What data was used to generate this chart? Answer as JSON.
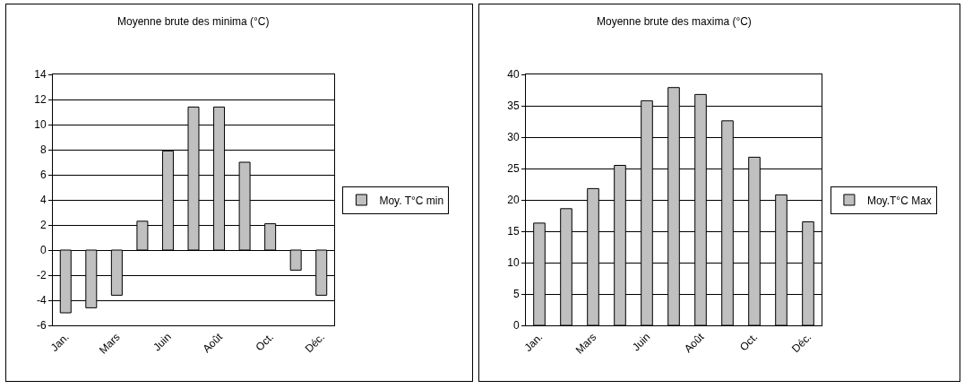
{
  "chart_data": [
    {
      "type": "bar",
      "title": "Moyenne brute des minima (°C)",
      "categories": [
        "Jan.",
        null,
        "Mars",
        null,
        "Juin",
        null,
        "Août",
        null,
        "Oct.",
        null,
        "Déc."
      ],
      "series": [
        {
          "name": "Moy. T°C min",
          "color": "#c0c0c0",
          "values": [
            -5.0,
            -4.6,
            -3.6,
            2.3,
            7.9,
            11.4,
            11.4,
            7.0,
            2.1,
            -1.6,
            -3.6
          ]
        }
      ],
      "ylim": [
        -6,
        14
      ],
      "yticks": [
        -6,
        -4,
        -2,
        0,
        2,
        4,
        6,
        8,
        10,
        12,
        14
      ],
      "grid": "y",
      "legend": "right"
    },
    {
      "type": "bar",
      "title": "Moyenne brute des maxima (°C)",
      "categories": [
        "Jan.",
        null,
        "Mars",
        null,
        "Juin",
        null,
        "Août",
        null,
        "Oct.",
        null,
        "Déc."
      ],
      "series": [
        {
          "name": "Moy.T°C Max",
          "color": "#c0c0c0",
          "values": [
            16.3,
            18.6,
            21.8,
            25.5,
            35.8,
            37.9,
            36.8,
            32.6,
            26.8,
            20.8,
            16.5
          ]
        }
      ],
      "ylim": [
        0,
        40
      ],
      "yticks": [
        0,
        5,
        10,
        15,
        20,
        25,
        30,
        35,
        40
      ],
      "grid": "y",
      "legend": "right"
    }
  ]
}
